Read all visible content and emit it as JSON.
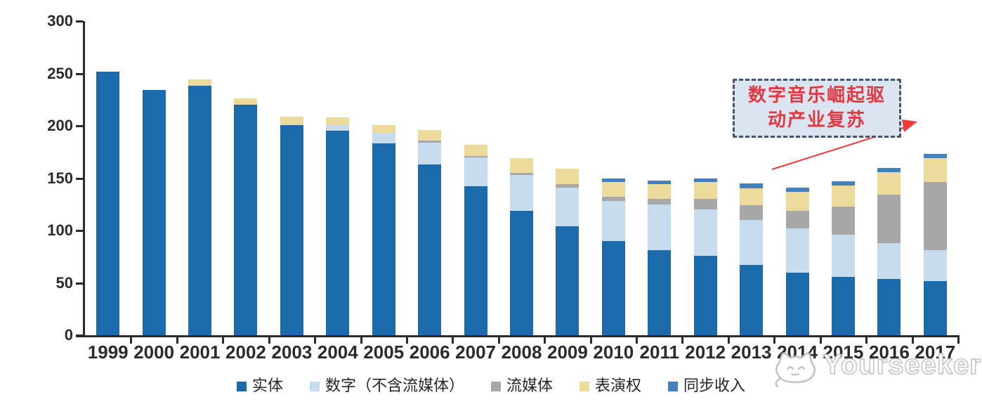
{
  "chart_data": {
    "type": "bar",
    "stacked": true,
    "title": "",
    "xlabel": "",
    "ylabel": "",
    "categories": [
      "1999",
      "2000",
      "2001",
      "2002",
      "2003",
      "2004",
      "2005",
      "2006",
      "2007",
      "2008",
      "2009",
      "2010",
      "2011",
      "2012",
      "2013",
      "2014",
      "2015",
      "2016",
      "2017"
    ],
    "series": [
      {
        "name": "实体",
        "color": "#1B6BAC",
        "values": [
          252,
          234,
          238,
          220,
          201,
          195,
          183,
          163,
          142,
          119,
          104,
          90,
          81,
          76,
          67,
          60,
          56,
          54,
          52
        ]
      },
      {
        "name": "数字（不含流媒体）",
        "color": "#C7DBEF",
        "values": [
          0,
          0,
          0,
          0,
          0,
          6,
          10,
          21,
          28,
          34,
          37,
          38,
          44,
          44,
          43,
          42,
          40,
          34,
          29
        ]
      },
      {
        "name": "流媒体",
        "color": "#A7A7A7",
        "values": [
          0,
          0,
          0,
          0,
          0,
          0,
          0,
          2,
          1,
          2,
          3,
          4,
          5,
          10,
          14,
          17,
          27,
          46,
          65
        ]
      },
      {
        "name": "表演权",
        "color": "#ECDB9B",
        "values": [
          0,
          0,
          6,
          6,
          8,
          7,
          8,
          10,
          11,
          14,
          15,
          14,
          14,
          16,
          16,
          18,
          20,
          22,
          23
        ]
      },
      {
        "name": "同步收入",
        "color": "#4381BE",
        "values": [
          0,
          0,
          0,
          0,
          0,
          0,
          0,
          0,
          0,
          0,
          0,
          4,
          4,
          4,
          5,
          4,
          4,
          4,
          4
        ]
      }
    ],
    "ylim": [
      0,
      300
    ],
    "y_ticks": [
      "0",
      "50",
      "100",
      "150",
      "200",
      "250",
      "300"
    ],
    "grid": false,
    "legend_position": "bottom"
  },
  "annotation": {
    "line1": "数字音乐崛起驱",
    "line2": "动产业复苏",
    "text_color": "#E2383F",
    "box_fill": "#DBE5F1",
    "box_border": "#44546A",
    "arrow_color": "#F03B3B"
  },
  "watermark": {
    "text": "Yourseeker",
    "logo": "cat-face-icon"
  }
}
